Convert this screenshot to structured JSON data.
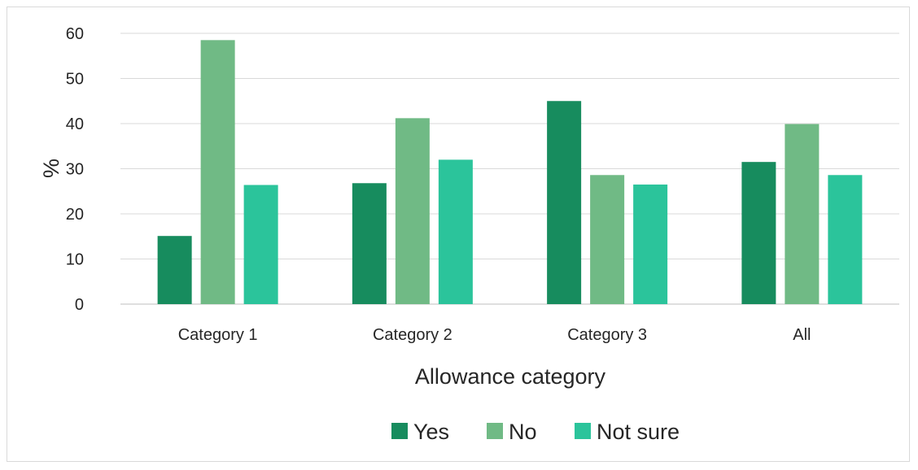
{
  "chart_data": {
    "type": "bar",
    "categories": [
      "Category 1",
      "Category 2",
      "Category 3",
      "All"
    ],
    "series": [
      {
        "name": "Yes",
        "values": [
          15.1,
          26.8,
          45.0,
          31.5
        ],
        "color": "#178c5e"
      },
      {
        "name": "No",
        "values": [
          58.5,
          41.2,
          28.6,
          39.9
        ],
        "color": "#70ba85"
      },
      {
        "name": "Not sure",
        "values": [
          26.4,
          32.0,
          26.5,
          28.6
        ],
        "color": "#2bc49b"
      }
    ],
    "title": "",
    "xlabel": "Allowance category",
    "ylabel": "%",
    "ylim": [
      0,
      60
    ],
    "yticks": [
      0,
      10,
      20,
      30,
      40,
      50,
      60
    ],
    "grid": true,
    "legend_position": "bottom"
  }
}
